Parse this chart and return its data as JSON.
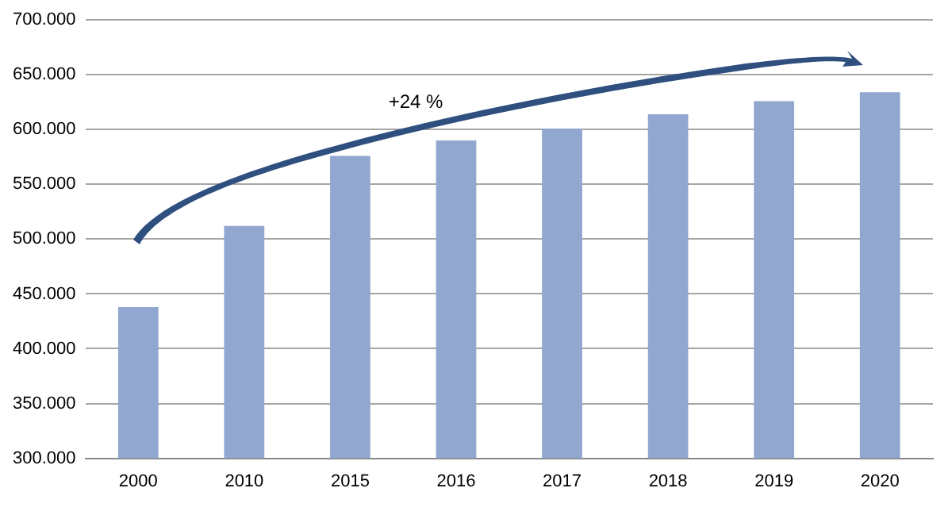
{
  "chart_data": {
    "type": "bar",
    "categories": [
      "2000",
      "2010",
      "2015",
      "2016",
      "2017",
      "2018",
      "2019",
      "2020"
    ],
    "values": [
      438000,
      512000,
      576000,
      590000,
      601000,
      614000,
      626000,
      634000
    ],
    "color": "#91a7cf",
    "ylim": [
      300000,
      700000
    ],
    "yticks": [
      {
        "value": 300000,
        "label": "300.000"
      },
      {
        "value": 350000,
        "label": "350.000"
      },
      {
        "value": 400000,
        "label": "400.000"
      },
      {
        "value": 450000,
        "label": "450.000"
      },
      {
        "value": 500000,
        "label": "500.000"
      },
      {
        "value": 550000,
        "label": "550.000"
      },
      {
        "value": 600000,
        "label": "600.000"
      },
      {
        "value": 650000,
        "label": "650.000"
      },
      {
        "value": 700000,
        "label": "700.000"
      }
    ],
    "grid": "y",
    "legend": false,
    "annotations": [
      "+24 %"
    ]
  }
}
